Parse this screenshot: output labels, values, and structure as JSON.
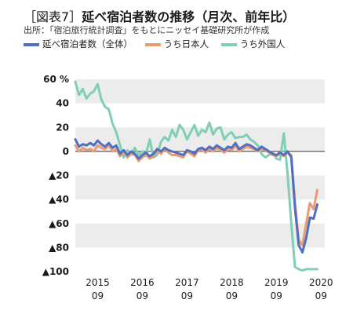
{
  "header": {
    "tag": "［図表7］",
    "title": "延べ宿泊者数の推移（月次、前年比）",
    "source": "出所：「宿泊旅行統計調査」をもとにニッセイ基礎研究所が作成"
  },
  "colors": {
    "total": "#4f6fbf",
    "japanese": "#ec9a74",
    "foreign": "#7fcfb5",
    "band": "#ececec",
    "zero_line": "#333333"
  },
  "chart_data": {
    "type": "line",
    "x_ticks": [
      {
        "index": 0,
        "year": "2015",
        "month": "09"
      },
      {
        "index": 12,
        "year": "2016",
        "month": "09"
      },
      {
        "index": 24,
        "year": "2017",
        "month": "09"
      },
      {
        "index": 36,
        "year": "2018",
        "month": "09"
      },
      {
        "index": 48,
        "year": "2019",
        "month": "09"
      },
      {
        "index": 60,
        "year": "2020",
        "month": "09"
      }
    ],
    "y_ticks": [
      {
        "value": 60,
        "label": "60 %"
      },
      {
        "value": 40,
        "label": "40"
      },
      {
        "value": 20,
        "label": "20"
      },
      {
        "value": 0,
        "label": "0"
      },
      {
        "value": -20,
        "label": "▲20"
      },
      {
        "value": -40,
        "label": "▲40"
      },
      {
        "value": -60,
        "label": "▲60"
      },
      {
        "value": -80,
        "label": "▲80"
      },
      {
        "value": -100,
        "label": "▲100"
      }
    ],
    "ylim": [
      -100,
      60
    ],
    "x_start": -6,
    "x_end": 61,
    "series": [
      {
        "key": "total",
        "name": "延べ宿泊者数（全体）",
        "values": [
          10,
          4,
          6,
          5,
          7,
          5,
          9,
          6,
          4,
          7,
          3,
          5,
          -2,
          1,
          -3,
          0,
          -2,
          -6,
          -3,
          -1,
          -4,
          -2,
          2,
          0,
          3,
          1,
          0,
          -1,
          -2,
          -3,
          1,
          0,
          -2,
          2,
          3,
          1,
          4,
          2,
          5,
          3,
          1,
          4,
          3,
          7,
          2,
          4,
          6,
          5,
          3,
          1,
          4,
          2,
          0,
          -2,
          -3,
          -1,
          -3,
          0,
          -5,
          -47,
          -78,
          -84,
          -72,
          -55,
          -56,
          -44
        ]
      },
      {
        "key": "japanese",
        "name": "うち日本人",
        "values": [
          5,
          0,
          3,
          1,
          2,
          0,
          5,
          3,
          2,
          5,
          0,
          2,
          -4,
          0,
          -5,
          -2,
          -3,
          -8,
          -5,
          -3,
          -6,
          -4,
          0,
          -2,
          2,
          -1,
          -3,
          -3,
          -4,
          -5,
          0,
          -2,
          -4,
          1,
          1,
          -1,
          2,
          0,
          3,
          1,
          -1,
          2,
          1,
          5,
          0,
          2,
          4,
          3,
          2,
          0,
          2,
          1,
          -1,
          -3,
          -4,
          -2,
          -4,
          -1,
          -3,
          -42,
          -74,
          -78,
          -60,
          -43,
          -48,
          -32
        ]
      },
      {
        "key": "foreign",
        "name": "うち外国人",
        "values": [
          58,
          47,
          52,
          44,
          48,
          50,
          56,
          43,
          37,
          35,
          23,
          16,
          5,
          -5,
          1,
          -2,
          3,
          -3,
          0,
          -2,
          10,
          -5,
          -3,
          8,
          12,
          9,
          18,
          12,
          22,
          18,
          10,
          16,
          22,
          13,
          18,
          16,
          24,
          14,
          19,
          20,
          10,
          14,
          16,
          11,
          12,
          12,
          14,
          10,
          8,
          5,
          -2,
          -5,
          -3,
          -1,
          -6,
          -7,
          15,
          -18,
          -60,
          -96,
          -98,
          -99,
          -98,
          -98,
          -98,
          -98
        ]
      }
    ]
  }
}
